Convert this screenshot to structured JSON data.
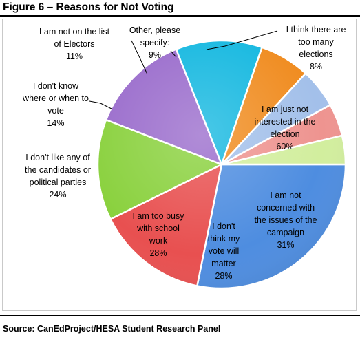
{
  "title": "Figure 6 – Reasons for Not Voting",
  "source": "Source: CanEdProject/HESA Student Research Panel",
  "colors": {
    "interested": "#4e8de0",
    "concerned": "#e85050",
    "matter": "#8ad13e",
    "busy": "#9a6ccc",
    "candidates": "#15b8e0",
    "know": "#f08c20",
    "list": "#a3c0ea",
    "other": "#ee9490",
    "elections": "#d2ee9e"
  },
  "chart_data": {
    "type": "pie",
    "title": "Reasons for Not Voting",
    "slices": [
      {
        "key": "interested",
        "label": [
          "I am just not",
          "interested in the",
          "election"
        ],
        "value": 60,
        "value_label": "60%"
      },
      {
        "key": "concerned",
        "label": [
          "I am not",
          "concerned with",
          "the issues of the",
          "campaign"
        ],
        "value": 31,
        "value_label": "31%"
      },
      {
        "key": "matter",
        "label": [
          "I  don't",
          "think my",
          "vote will",
          "matter"
        ],
        "value": 28,
        "value_label": "28%"
      },
      {
        "key": "busy",
        "label": [
          "I am too busy",
          "with school",
          "work"
        ],
        "value": 28,
        "value_label": "28%"
      },
      {
        "key": "candidates",
        "label": [
          "I don't like any of",
          "the candidates or",
          "political parties"
        ],
        "value": 24,
        "value_label": "24%"
      },
      {
        "key": "know",
        "label": [
          "I don't know",
          "where or when to",
          "vote"
        ],
        "value": 14,
        "value_label": "14%"
      },
      {
        "key": "list",
        "label": [
          "I am not on the list",
          "of Electors"
        ],
        "value": 11,
        "value_label": "11%"
      },
      {
        "key": "other",
        "label": [
          "Other, please",
          "specify:"
        ],
        "value": 9,
        "value_label": "9%"
      },
      {
        "key": "elections",
        "label": [
          "I think there are",
          "too many",
          "elections"
        ],
        "value": 8,
        "value_label": "8%"
      }
    ]
  }
}
